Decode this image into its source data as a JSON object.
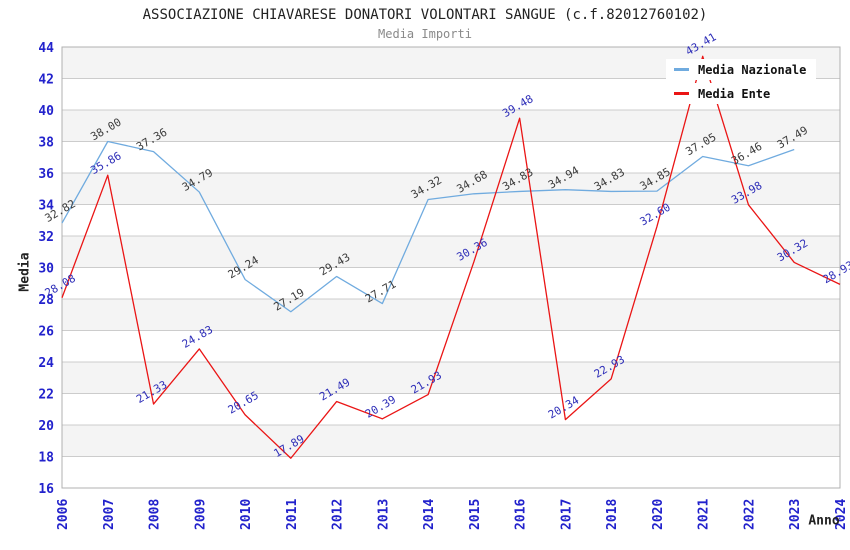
{
  "chart_data": {
    "type": "line",
    "title": "ASSOCIAZIONE CHIAVARESE DONATORI VOLONTARI SANGUE (c.f.82012760102)",
    "subtitle": "Media Importi",
    "xlabel": "Anno",
    "ylabel": "Media",
    "categories": [
      "2006",
      "2007",
      "2008",
      "2009",
      "2010",
      "2011",
      "2012",
      "2013",
      "2014",
      "2015",
      "2016",
      "2017",
      "2018",
      "2020",
      "2021",
      "2022",
      "2023",
      "2024"
    ],
    "series": [
      {
        "name": "Media Nazionale",
        "color": "#70abdf",
        "label_color": "#3c3c3c",
        "values": [
          32.82,
          38.0,
          37.36,
          34.79,
          29.24,
          27.19,
          29.43,
          27.71,
          34.32,
          34.68,
          34.83,
          34.94,
          34.83,
          34.85,
          37.05,
          36.46,
          37.49,
          null
        ]
      },
      {
        "name": "Media Ente",
        "color": "#ea1515",
        "label_color": "#2e2eb8",
        "values": [
          28.08,
          35.86,
          21.33,
          24.83,
          20.65,
          17.89,
          21.49,
          20.39,
          21.93,
          30.36,
          39.48,
          20.34,
          22.93,
          32.6,
          43.41,
          33.98,
          30.32,
          28.93
        ]
      }
    ],
    "ylim": [
      16,
      44
    ],
    "ytick_step": 2,
    "grid": true,
    "legend_position": "top-right",
    "colors": {
      "axis_tick": "#2222cc",
      "grid_line": "#cccccc",
      "band": "#f4f4f4",
      "plot_border": "#b0b0b0",
      "plot_background": "#ffffff"
    }
  }
}
